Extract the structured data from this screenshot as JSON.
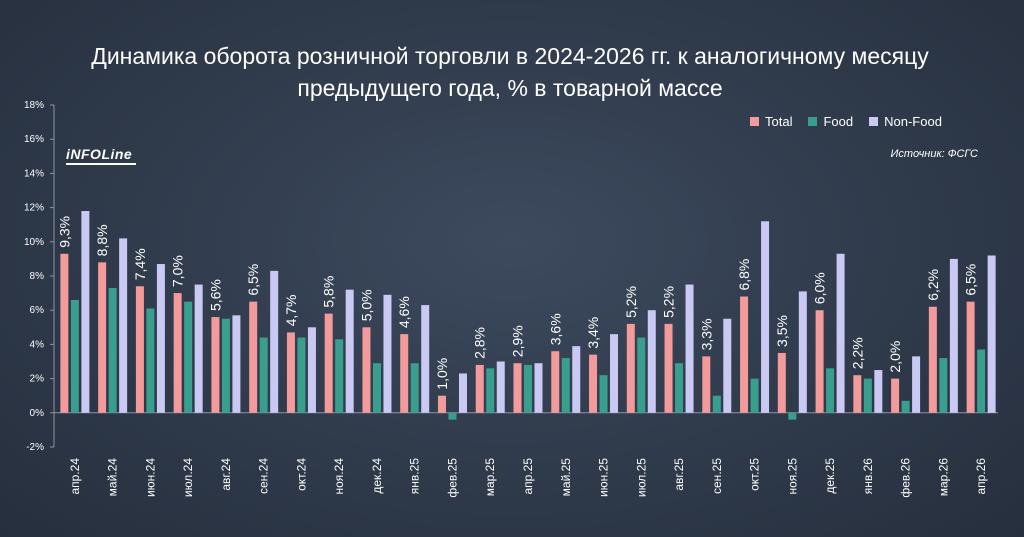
{
  "title": "Динамика оборота розничной торговли в 2024-2026 гг. к аналогичному месяцу предыдущего года, % в товарной массе",
  "logo_text": "iNFOLine",
  "source": "Источник: ФСГС",
  "colors": {
    "total": "#f39a9a",
    "food": "#3a9e8f",
    "nonfood": "#c9c9f4",
    "axis": "#8a94a6"
  },
  "chart_data": {
    "type": "bar",
    "title": "Динамика оборота розничной торговли в 2024-2026 гг. к аналогичному месяцу предыдущего года, % в товарной массе",
    "xlabel": "",
    "ylabel": "",
    "ylim": [
      -2,
      18
    ],
    "yticks": [
      "-2%",
      "0%",
      "2%",
      "4%",
      "6%",
      "8%",
      "10%",
      "12%",
      "14%",
      "16%",
      "18%"
    ],
    "legend_position": "top-right",
    "categories": [
      "апр.24",
      "май.24",
      "июн.24",
      "июл.24",
      "авг.24",
      "сен.24",
      "окт.24",
      "ноя.24",
      "дек.24",
      "янв.25",
      "фев.25",
      "мар.25",
      "апр.25",
      "май.25",
      "июн.25",
      "июл.25",
      "авг.25",
      "сен.25",
      "окт.25",
      "ноя.25",
      "дек.25",
      "янв.26",
      "фев.26",
      "мар.26",
      "апр.26"
    ],
    "series": [
      {
        "name": "Total",
        "values": [
          9.3,
          8.8,
          7.4,
          7.0,
          5.6,
          6.5,
          4.7,
          5.8,
          5.0,
          4.6,
          1.0,
          2.8,
          2.9,
          3.6,
          3.4,
          5.2,
          5.2,
          3.3,
          6.8,
          3.5,
          6.0,
          2.2,
          2.0,
          6.2,
          6.5
        ]
      },
      {
        "name": "Food",
        "values": [
          6.6,
          7.3,
          6.1,
          6.5,
          5.5,
          4.4,
          4.4,
          4.3,
          2.9,
          2.9,
          -0.4,
          2.6,
          2.8,
          3.2,
          2.2,
          4.4,
          2.9,
          1.0,
          2.0,
          -0.4,
          2.6,
          2.0,
          0.7,
          3.2,
          3.7
        ]
      },
      {
        "name": "Non-Food",
        "values": [
          11.8,
          10.2,
          8.7,
          7.5,
          5.7,
          8.3,
          5.0,
          7.2,
          6.9,
          6.3,
          2.3,
          3.0,
          2.9,
          3.9,
          4.6,
          6.0,
          7.5,
          5.5,
          11.2,
          7.1,
          9.3,
          2.5,
          3.3,
          9.0,
          9.2
        ]
      }
    ],
    "data_labels": [
      "9,3%",
      "8,8%",
      "7,4%",
      "7,0%",
      "5,6%",
      "6,5%",
      "4,7%",
      "5,8%",
      "5,0%",
      "4,6%",
      "1,0%",
      "2,8%",
      "2,9%",
      "3,6%",
      "3,4%",
      "5,2%",
      "5,2%",
      "3,3%",
      "6,8%",
      "3,5%",
      "6,0%",
      "2,2%",
      "2,0%",
      "6,2%",
      "6,5%"
    ]
  }
}
